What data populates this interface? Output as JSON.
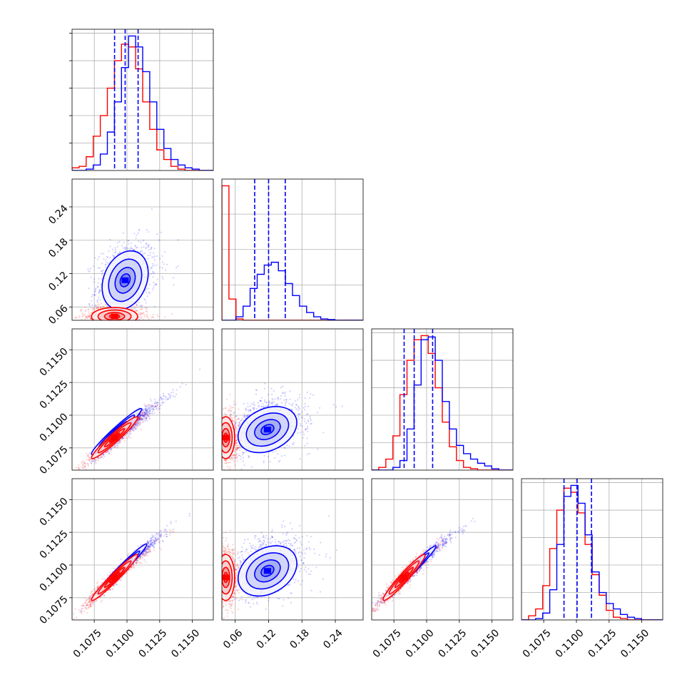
{
  "chart_data": {
    "type": "corner",
    "title": "",
    "parameters": [
      "",
      "",
      "",
      ""
    ],
    "colors": {
      "series_a": "#ff0000",
      "series_b": "#0000ff"
    },
    "grid": true,
    "legend": "none",
    "ranges": [
      [
        0.1058,
        0.1166
      ],
      [
        0.036,
        0.29
      ],
      [
        0.1058,
        0.1166
      ],
      [
        0.1058,
        0.1166
      ]
    ],
    "ticks": [
      [
        "0.1075",
        "0.1100",
        "0.1125",
        "0.1150"
      ],
      [
        "0.06",
        "0.12",
        "0.18",
        "0.24"
      ],
      [
        "0.1075",
        "0.1100",
        "0.1125",
        "0.1150"
      ],
      [
        "0.1075",
        "0.1100",
        "0.1125",
        "0.1150"
      ]
    ],
    "tick_values": [
      [
        0.1075,
        0.11,
        0.1125,
        0.115
      ],
      [
        0.06,
        0.12,
        0.18,
        0.24
      ],
      [
        0.1075,
        0.11,
        0.1125,
        0.115
      ],
      [
        0.1075,
        0.11,
        0.1125,
        0.115
      ]
    ],
    "histograms": [
      {
        "bins": [
          0.1058,
          0.1166,
          20
        ],
        "series": [
          {
            "name": "",
            "color": "#ff0000",
            "values": [
              2,
              3,
              10,
              25,
              40,
              60,
              80,
              92,
              90,
              74,
              50,
              30,
              15,
              8,
              3,
              1,
              0,
              0,
              0,
              0
            ]
          },
          {
            "name": "",
            "color": "#0000ff",
            "values": [
              0,
              0,
              1,
              4,
              12,
              28,
              50,
              75,
              98,
              90,
              72,
              50,
              30,
              16,
              8,
              4,
              2,
              1,
              0,
              0
            ]
          }
        ],
        "quantiles": [
          0.10905,
          0.10986,
          0.11085
        ]
      },
      {
        "bins": [
          0.036,
          0.29,
          20
        ],
        "series": [
          {
            "name": "",
            "color": "#ff0000",
            "values": [
              190,
              30,
              2,
              0,
              0,
              0,
              0,
              0,
              0,
              0,
              0,
              0,
              0,
              0,
              0,
              0,
              0,
              0,
              0,
              0
            ]
          },
          {
            "name": "",
            "color": "#0000ff",
            "values": [
              0,
              0,
              5,
              20,
              45,
              65,
              78,
              82,
              70,
              52,
              35,
              20,
              11,
              5,
              2,
              1,
              0,
              0,
              0,
              0
            ]
          }
        ],
        "quantiles": [
          0.095,
          0.12,
          0.15
        ]
      },
      {
        "bins": [
          0.1058,
          0.1166,
          20
        ],
        "series": [
          {
            "name": "",
            "color": "#ff0000",
            "values": [
              0,
              2,
              8,
              25,
              55,
              80,
              95,
              98,
              85,
              60,
              35,
              17,
              7,
              2,
              1,
              0,
              0,
              0,
              0,
              0
            ]
          },
          {
            "name": "",
            "color": "#0000ff",
            "values": [
              0,
              0,
              0,
              2,
              7,
              30,
              62,
              95,
              97,
              80,
              50,
              30,
              18,
              12,
              8,
              5,
              3,
              1,
              0,
              0
            ]
          }
        ],
        "quantiles": [
          0.10828,
          0.10905,
          0.11046
        ]
      },
      {
        "bins": [
          0.1058,
          0.1166,
          20
        ],
        "series": [
          {
            "name": "",
            "color": "#ff0000",
            "values": [
              0,
              3,
              8,
              25,
              52,
              80,
              96,
              93,
              78,
              55,
              33,
              18,
              7,
              2,
              1,
              0,
              0,
              0,
              0,
              0
            ]
          },
          {
            "name": "",
            "color": "#0000ff",
            "values": [
              0,
              0,
              1,
              5,
              22,
              55,
              90,
              98,
              85,
              62,
              35,
              20,
              12,
              8,
              4,
              2,
              1,
              0,
              0,
              0
            ]
          }
        ],
        "quantiles": [
          0.10905,
          0.11005,
          0.11115
        ]
      }
    ],
    "scatter_panels": [
      {
        "row": 1,
        "col": 0,
        "series": [
          {
            "color": "#0000ff",
            "center": [
              0.10986,
              0.113
            ],
            "std": [
              0.0011,
              0.033
            ],
            "corr": 0.25,
            "n": 900,
            "contour_center": [
              0.10986,
              0.108
            ]
          },
          {
            "color": "#ff0000",
            "center": [
              0.10905,
              0.043
            ],
            "std": [
              0.0011,
              0.01
            ],
            "corr": 0.0,
            "n": 900,
            "contour_center": [
              0.10905,
              0.043
            ]
          }
        ]
      },
      {
        "row": 2,
        "col": 0,
        "series": [
          {
            "color": "#0000ff",
            "center": [
              0.11005,
              0.10905
            ],
            "std": [
              0.0012,
              0.0011
            ],
            "corr": 0.97,
            "n": 900,
            "contour_center": [
              0.1092,
              0.10875
            ]
          },
          {
            "color": "#ff0000",
            "center": [
              0.10905,
              0.10828
            ],
            "std": [
              0.0011,
              0.001
            ],
            "corr": 0.96,
            "n": 900,
            "contour_center": [
              0.10905,
              0.10828
            ]
          }
        ]
      },
      {
        "row": 2,
        "col": 1,
        "series": [
          {
            "color": "#0000ff",
            "center": [
              0.118,
              0.10925
            ],
            "std": [
              0.033,
              0.0011
            ],
            "corr": 0.3,
            "n": 900,
            "contour_center": [
              0.118,
              0.1089
            ]
          },
          {
            "color": "#ff0000",
            "center": [
              0.043,
              0.10828
            ],
            "std": [
              0.01,
              0.001
            ],
            "corr": 0.0,
            "n": 900,
            "contour_center": [
              0.043,
              0.10828
            ]
          }
        ]
      },
      {
        "row": 3,
        "col": 0,
        "series": [
          {
            "color": "#0000ff",
            "center": [
              0.11005,
              0.11005
            ],
            "std": [
              0.0012,
              0.0012
            ],
            "corr": 0.98,
            "n": 900,
            "contour_center": [
              0.1096,
              0.1097
            ]
          },
          {
            "color": "#ff0000",
            "center": [
              0.10905,
              0.10905
            ],
            "std": [
              0.0011,
              0.0011
            ],
            "corr": 0.97,
            "n": 900,
            "contour_center": [
              0.10905,
              0.10905
            ]
          }
        ]
      },
      {
        "row": 3,
        "col": 1,
        "series": [
          {
            "color": "#0000ff",
            "center": [
              0.118,
              0.10995
            ],
            "std": [
              0.033,
              0.0012
            ],
            "corr": 0.3,
            "n": 900,
            "contour_center": [
              0.118,
              0.10955
            ]
          },
          {
            "color": "#ff0000",
            "center": [
              0.043,
              0.10905
            ],
            "std": [
              0.01,
              0.0011
            ],
            "corr": 0.0,
            "n": 900,
            "contour_center": [
              0.043,
              0.10905
            ]
          }
        ]
      },
      {
        "row": 3,
        "col": 2,
        "series": [
          {
            "color": "#0000ff",
            "center": [
              0.10925,
              0.10995
            ],
            "std": [
              0.0012,
              0.0012
            ],
            "corr": 0.98,
            "n": 900,
            "contour_center": [
              0.1088,
              0.10955
            ]
          },
          {
            "color": "#ff0000",
            "center": [
              0.10828,
              0.10905
            ],
            "std": [
              0.001,
              0.0011
            ],
            "corr": 0.96,
            "n": 900,
            "contour_center": [
              0.10828,
              0.10905
            ]
          }
        ]
      }
    ]
  }
}
